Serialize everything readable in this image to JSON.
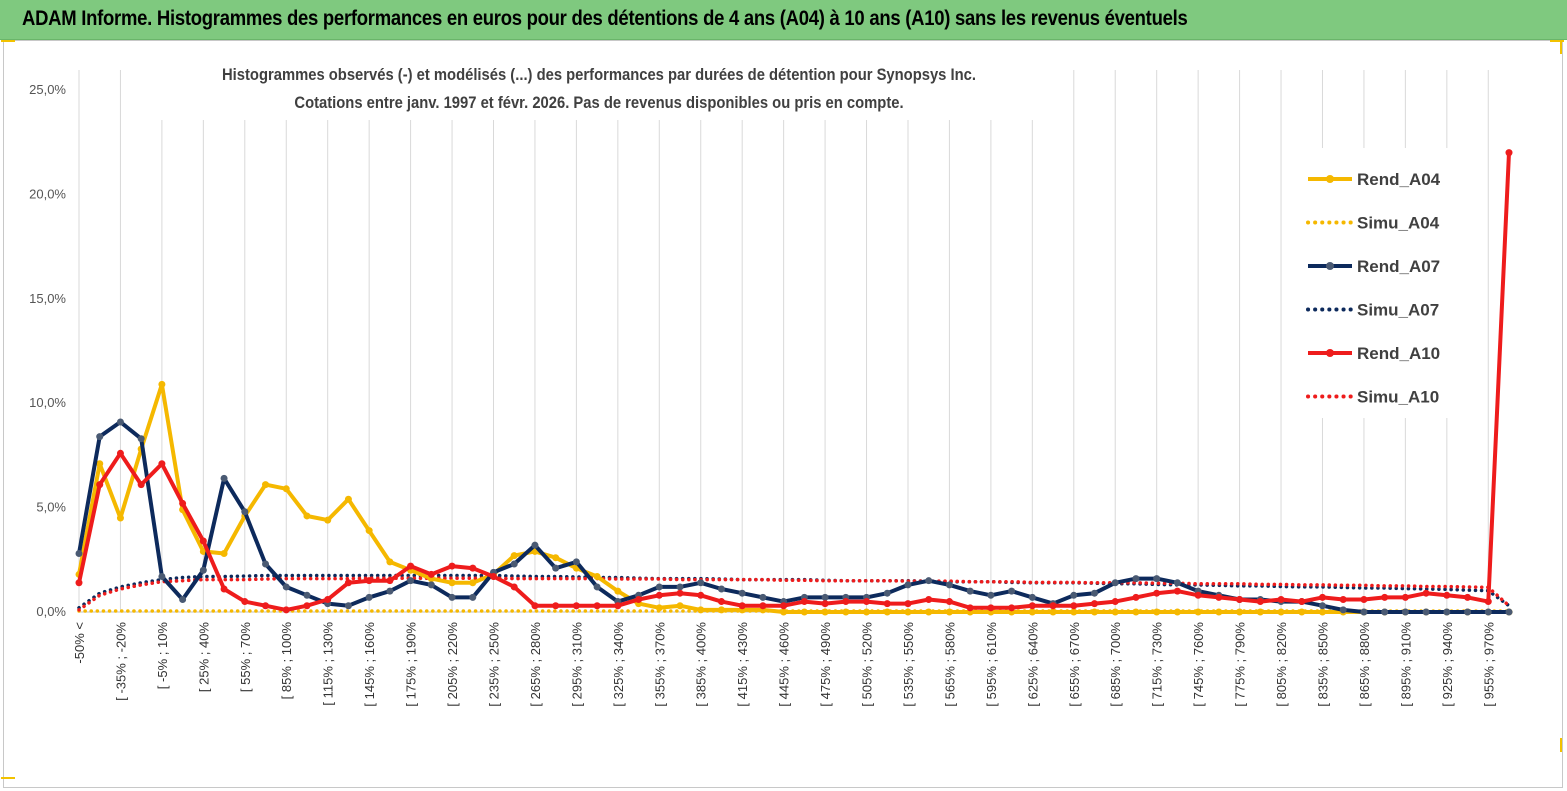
{
  "header": {
    "title": "ADAM Informe. Histogrammes des performances en euros pour des détentions de 4 ans (A04) à 10 ans (A10) sans les revenus éventuels"
  },
  "colors": {
    "header_bg": "#7fc97f",
    "A04": "#f5b800",
    "A07": "#0d2a5c",
    "A10": "#ee1c1c",
    "A07_marker": "#4a5a73"
  },
  "chart_data": {
    "type": "line",
    "subtitle_lines": [
      "Histogrammes observés (-)  et modélisés (...) des performances par durées de détention pour Synopsys Inc.",
      "Cotations entre janv. 1997 et févr. 2026. Pas de revenus disponibles ou pris en compte."
    ],
    "ylim": [
      0,
      25
    ],
    "yticks": [
      "0,0%",
      "5,0%",
      "10,0%",
      "15,0%",
      "20,0%",
      "25,0%"
    ],
    "grid": "vertical",
    "legend_position": "right",
    "x_labels": [
      "-50% <",
      "[ -35% ; -20%",
      "[ -5% ; 10%",
      "[ 25% ; 40%",
      "[ 55% ; 70%",
      "[ 85% ; 100%",
      "[ 115% ; 130%",
      "[ 145% ; 160%",
      "[ 175% ; 190%",
      "[ 205% ; 220%",
      "[ 235% ; 250%",
      "[ 265% ; 280%",
      "[ 295% ; 310%",
      "[ 325% ; 340%",
      "[ 355% ; 370%",
      "[ 385% ; 400%",
      "[ 415% ; 430%",
      "[ 445% ; 460%",
      "[ 475% ; 490%",
      "[ 505% ; 520%",
      "[ 535% ; 550%",
      "[ 565% ; 580%",
      "[ 595% ; 610%",
      "[ 625% ; 640%",
      "[ 655% ; 670%",
      "[ 685% ; 700%",
      "[ 715% ; 730%",
      "[ 745% ; 760%",
      "[ 775% ; 790%",
      "[ 805% ; 820%",
      "[ 835% ; 850%",
      "[ 865% ; 880%",
      "[ 895% ; 910%",
      "[ 925% ; 940%",
      "[ 955% ; 970%"
    ],
    "series": [
      {
        "name": "Rend_A04",
        "style": "solid",
        "color": "#f5b800",
        "values": [
          1.8,
          7.1,
          4.5,
          7.8,
          10.9,
          4.9,
          2.9,
          2.8,
          4.6,
          6.1,
          5.9,
          4.6,
          4.4,
          5.4,
          3.9,
          2.4,
          2.0,
          1.6,
          1.4,
          1.4,
          1.8,
          2.7,
          2.9,
          2.6,
          2.1,
          1.7,
          1.0,
          0.4,
          0.2,
          0.3,
          0.1,
          0.1,
          0.1,
          0.1,
          0.0,
          0.0,
          0.0,
          0.0,
          0.0,
          0.0,
          0.0,
          0.0,
          0.0,
          0.0,
          0.0,
          0.0,
          0.0,
          0.0,
          0.0,
          0.0,
          0.0,
          0.0,
          0.0,
          0.0,
          0.0,
          0.0,
          0.0,
          0.0,
          0.0,
          0.0,
          0.0,
          0.0,
          0.0,
          0.0,
          0.0,
          0.0,
          0.0,
          0.0,
          0.0,
          0.0
        ]
      },
      {
        "name": "Simu_A04",
        "style": "dotted",
        "color": "#f5b800",
        "values": [
          0.05,
          0.05,
          0.05,
          0.05,
          0.05,
          0.05,
          0.05,
          0.05,
          0.05,
          0.05,
          0.05,
          0.05,
          0.05,
          0.05,
          0.05,
          0.05,
          0.05,
          0.05,
          0.05,
          0.05,
          0.05,
          0.05,
          0.05,
          0.05,
          0.05,
          0.05,
          0.05,
          0.05,
          0.05,
          0.05,
          0.05,
          0.05,
          0.05,
          0.05,
          0.05,
          0.05,
          0.05,
          0.05,
          0.05,
          0.05,
          0.05,
          0.05,
          0.05,
          0.05,
          0.05,
          0.05,
          0.05,
          0.05,
          0.05,
          0.05,
          0.05,
          0.05,
          0.05,
          0.05,
          0.05,
          0.05,
          0.05,
          0.05,
          0.05,
          0.05,
          0.05,
          0.05,
          0.05,
          0.05,
          0.05,
          0.05,
          0.05,
          0.05,
          0.05,
          0.05
        ]
      },
      {
        "name": "Rend_A07",
        "style": "solid",
        "color": "#0d2a5c",
        "values": [
          2.8,
          8.4,
          9.1,
          8.3,
          1.7,
          0.6,
          2.0,
          6.4,
          4.8,
          2.3,
          1.2,
          0.8,
          0.4,
          0.3,
          0.7,
          1.0,
          1.5,
          1.3,
          0.7,
          0.7,
          1.9,
          2.3,
          3.2,
          2.1,
          2.4,
          1.2,
          0.5,
          0.8,
          1.2,
          1.2,
          1.4,
          1.1,
          0.9,
          0.7,
          0.5,
          0.7,
          0.7,
          0.7,
          0.7,
          0.9,
          1.3,
          1.5,
          1.3,
          1.0,
          0.8,
          1.0,
          0.7,
          0.4,
          0.8,
          0.9,
          1.4,
          1.6,
          1.6,
          1.4,
          1.0,
          0.8,
          0.6,
          0.6,
          0.5,
          0.5,
          0.3,
          0.1,
          0.0,
          0.0,
          0.0,
          0.0,
          0.0,
          0.0,
          0.0,
          0.0
        ]
      },
      {
        "name": "Simu_A07",
        "style": "dotted",
        "color": "#0d2a5c",
        "values": [
          0.2,
          0.9,
          1.2,
          1.4,
          1.55,
          1.65,
          1.7,
          1.7,
          1.72,
          1.75,
          1.75,
          1.75,
          1.75,
          1.75,
          1.75,
          1.75,
          1.75,
          1.75,
          1.75,
          1.75,
          1.75,
          1.72,
          1.7,
          1.7,
          1.68,
          1.65,
          1.65,
          1.62,
          1.6,
          1.6,
          1.6,
          1.58,
          1.55,
          1.55,
          1.55,
          1.55,
          1.52,
          1.5,
          1.5,
          1.5,
          1.5,
          1.48,
          1.45,
          1.45,
          1.45,
          1.42,
          1.4,
          1.4,
          1.4,
          1.38,
          1.35,
          1.35,
          1.32,
          1.3,
          1.3,
          1.28,
          1.25,
          1.25,
          1.22,
          1.2,
          1.2,
          1.18,
          1.15,
          1.15,
          1.12,
          1.1,
          1.08,
          1.05,
          1.02,
          0.3
        ]
      },
      {
        "name": "Rend_A10",
        "style": "solid",
        "color": "#ee1c1c",
        "values": [
          1.4,
          6.1,
          7.6,
          6.1,
          7.1,
          5.2,
          3.4,
          1.1,
          0.5,
          0.3,
          0.1,
          0.3,
          0.6,
          1.4,
          1.5,
          1.5,
          2.2,
          1.8,
          2.2,
          2.1,
          1.7,
          1.2,
          0.3,
          0.3,
          0.3,
          0.3,
          0.3,
          0.6,
          0.8,
          0.9,
          0.8,
          0.5,
          0.3,
          0.3,
          0.3,
          0.5,
          0.4,
          0.5,
          0.5,
          0.4,
          0.4,
          0.6,
          0.5,
          0.2,
          0.2,
          0.2,
          0.3,
          0.3,
          0.3,
          0.4,
          0.5,
          0.7,
          0.9,
          1.0,
          0.8,
          0.7,
          0.6,
          0.5,
          0.6,
          0.5,
          0.7,
          0.6,
          0.6,
          0.7,
          0.7,
          0.9,
          0.8,
          0.7,
          0.5,
          22.0
        ]
      },
      {
        "name": "Simu_A10",
        "style": "dotted",
        "color": "#ee1c1c",
        "values": [
          0.1,
          0.8,
          1.1,
          1.3,
          1.45,
          1.5,
          1.55,
          1.55,
          1.55,
          1.58,
          1.6,
          1.6,
          1.6,
          1.6,
          1.62,
          1.62,
          1.62,
          1.62,
          1.62,
          1.62,
          1.62,
          1.6,
          1.6,
          1.6,
          1.6,
          1.6,
          1.58,
          1.58,
          1.58,
          1.55,
          1.55,
          1.55,
          1.55,
          1.55,
          1.52,
          1.52,
          1.5,
          1.5,
          1.5,
          1.5,
          1.48,
          1.48,
          1.48,
          1.45,
          1.45,
          1.45,
          1.42,
          1.42,
          1.42,
          1.4,
          1.4,
          1.4,
          1.38,
          1.38,
          1.35,
          1.35,
          1.35,
          1.32,
          1.32,
          1.3,
          1.3,
          1.28,
          1.28,
          1.25,
          1.25,
          1.22,
          1.22,
          1.2,
          1.18,
          0.3
        ]
      }
    ]
  }
}
